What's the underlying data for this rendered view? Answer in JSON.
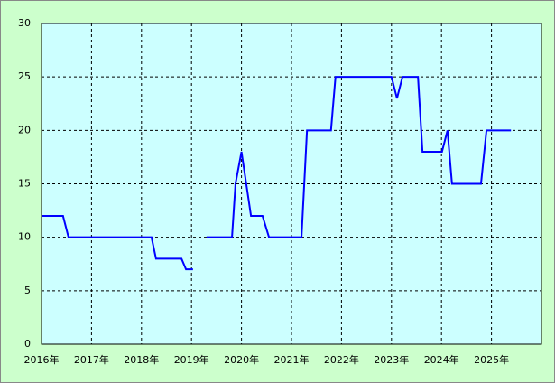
{
  "chart_data": {
    "type": "line",
    "x": [
      2016.0,
      2016.43,
      2016.54,
      2018.2,
      2018.29,
      2018.8,
      2018.89,
      2019.03,
      2019.15,
      2019.3,
      2019.81,
      2019.88,
      2020.0,
      2020.19,
      2020.42,
      2020.55,
      2021.2,
      2021.31,
      2021.79,
      2021.88,
      2023.0,
      2023.11,
      2023.22,
      2023.53,
      2023.62,
      2024.01,
      2024.12,
      2024.21,
      2024.79,
      2024.9,
      2025.39
    ],
    "values": [
      12,
      12,
      10,
      10,
      8,
      8,
      7,
      7,
      null,
      10,
      10,
      15,
      18,
      12,
      12,
      10,
      10,
      20,
      20,
      25,
      25,
      23,
      25,
      25,
      18,
      18,
      20,
      15,
      15,
      20,
      20
    ],
    "color": "#0000ff",
    "xlim": [
      2016,
      2026
    ],
    "xticks": [
      {
        "value": 2016,
        "label": "2016年"
      },
      {
        "value": 2017,
        "label": "2017年"
      },
      {
        "value": 2018,
        "label": "2018年"
      },
      {
        "value": 2019,
        "label": "2019年"
      },
      {
        "value": 2020,
        "label": "2020年"
      },
      {
        "value": 2021,
        "label": "2021年"
      },
      {
        "value": 2022,
        "label": "2022年"
      },
      {
        "value": 2023,
        "label": "2023年"
      },
      {
        "value": 2024,
        "label": "2024年"
      },
      {
        "value": 2025,
        "label": "2025年"
      }
    ],
    "ylim": [
      0,
      30
    ],
    "yticks": [
      0,
      5,
      10,
      15,
      20,
      25,
      30
    ],
    "grid": true
  }
}
